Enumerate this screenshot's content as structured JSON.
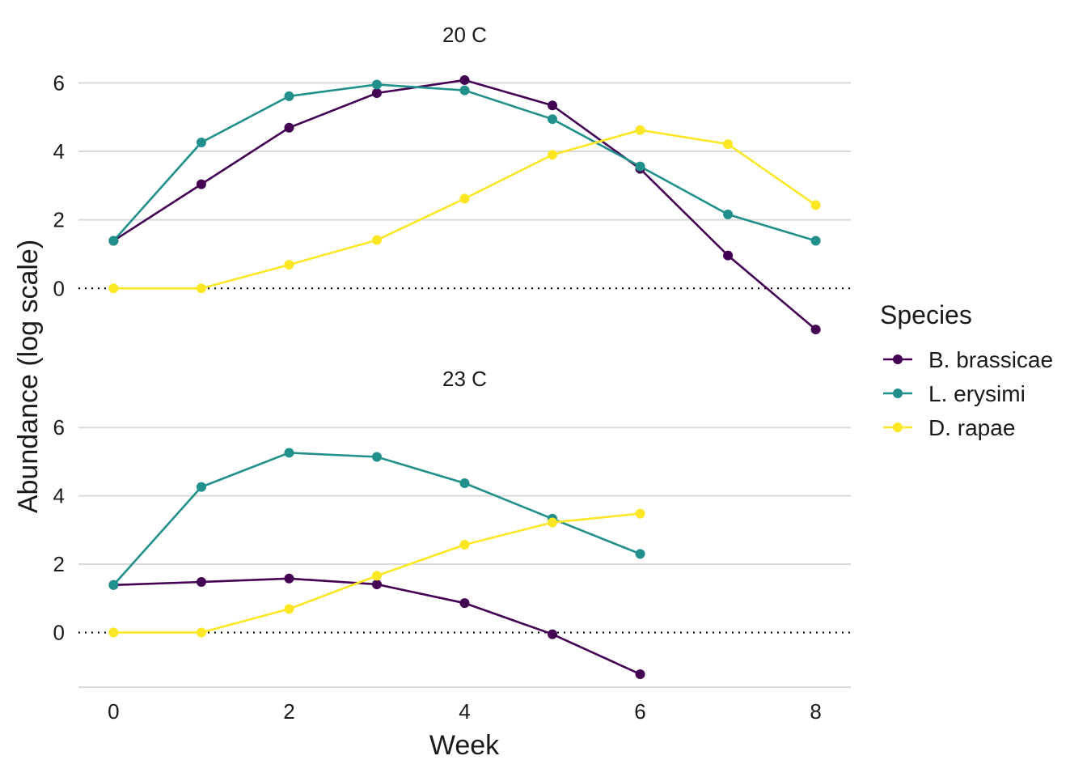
{
  "chart_data": {
    "type": "line",
    "xlabel": "Week",
    "ylabel": "Abundance (log scale)",
    "x_ticks": [
      0,
      2,
      4,
      6,
      8
    ],
    "y_ticks": [
      0,
      2,
      4,
      6
    ],
    "xlim": [
      -0.4,
      8.4
    ],
    "ylim": [
      -1.6,
      7.0
    ],
    "reference_line": {
      "y": 0,
      "style": "dotted"
    },
    "grid": "horizontal major gridlines",
    "legend": {
      "title": "Species",
      "position": "right",
      "entries": [
        "B. brassicae",
        "L. erysimi",
        "D. rapae"
      ]
    },
    "colors": {
      "B. brassicae": "#440154",
      "L. erysimi": "#21908C",
      "D. rapae": "#FDE725"
    },
    "panels": [
      {
        "title": "20 C",
        "series": [
          {
            "name": "B. brassicae",
            "x": [
              0,
              1,
              2,
              3,
              4,
              5,
              6,
              7,
              8
            ],
            "y": [
              1.39,
              3.04,
              4.69,
              5.7,
              6.08,
              5.34,
              3.49,
              0.96,
              -1.2
            ]
          },
          {
            "name": "L. erysimi",
            "x": [
              0,
              1,
              2,
              3,
              4,
              5,
              6,
              7,
              8
            ],
            "y": [
              1.39,
              4.26,
              5.61,
              5.95,
              5.78,
              4.94,
              3.56,
              2.16,
              1.39
            ]
          },
          {
            "name": "D. rapae",
            "x": [
              0,
              1,
              2,
              3,
              4,
              5,
              6,
              7,
              8
            ],
            "y": [
              0.0,
              0.0,
              0.69,
              1.41,
              2.62,
              3.9,
              4.62,
              4.21,
              2.43
            ]
          }
        ]
      },
      {
        "title": "23 C",
        "series": [
          {
            "name": "B. brassicae",
            "x": [
              0,
              1,
              2,
              3,
              4,
              5,
              6
            ],
            "y": [
              1.39,
              1.48,
              1.58,
              1.41,
              0.86,
              -0.05,
              -1.22
            ]
          },
          {
            "name": "L. erysimi",
            "x": [
              0,
              1,
              2,
              3,
              4,
              5,
              6
            ],
            "y": [
              1.39,
              4.26,
              5.26,
              5.14,
              4.37,
              3.33,
              2.3
            ]
          },
          {
            "name": "D. rapae",
            "x": [
              0,
              1,
              2,
              3,
              4,
              5,
              6
            ],
            "y": [
              0.0,
              0.0,
              0.69,
              1.66,
              2.57,
              3.22,
              3.48
            ]
          }
        ]
      }
    ]
  }
}
